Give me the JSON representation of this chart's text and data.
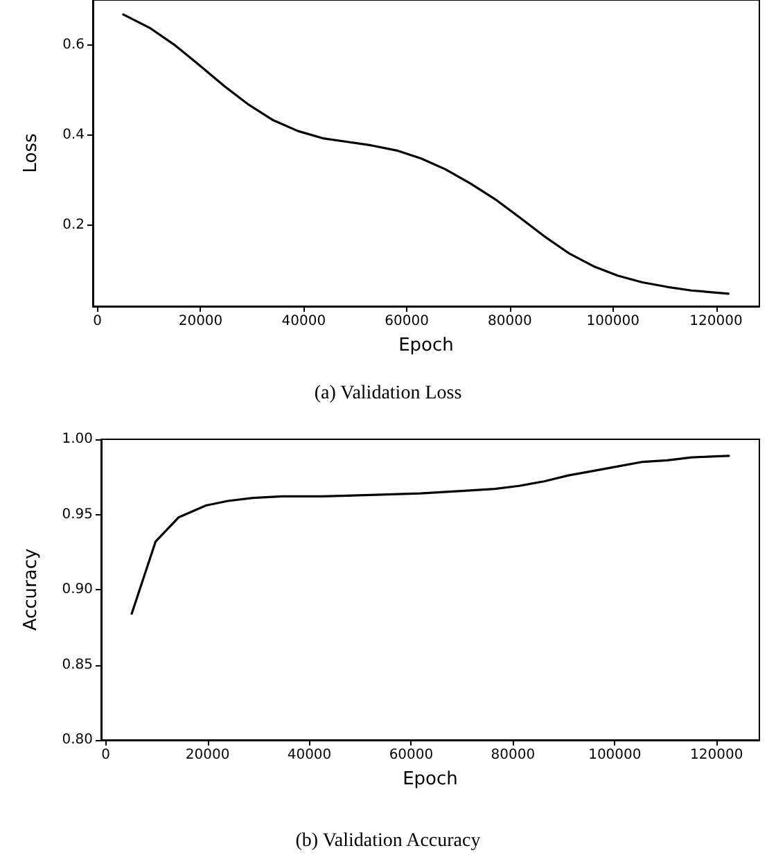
{
  "chart_data": [
    {
      "type": "line",
      "title": "(a) Validation Loss",
      "xlabel": "Epoch",
      "ylabel": "Loss",
      "x": [
        5000,
        10300,
        15100,
        19800,
        24600,
        29400,
        34100,
        38900,
        43700,
        48500,
        53200,
        58000,
        62800,
        67500,
        72300,
        77100,
        81800,
        86600,
        91400,
        96200,
        100900,
        105700,
        110500,
        115200,
        122400
      ],
      "series": [
        {
          "color": "#000000",
          "values": [
            0.668,
            0.637,
            0.599,
            0.555,
            0.509,
            0.467,
            0.433,
            0.409,
            0.393,
            0.385,
            0.377,
            0.366,
            0.348,
            0.324,
            0.293,
            0.258,
            0.218,
            0.176,
            0.138,
            0.109,
            0.088,
            0.073,
            0.063,
            0.055,
            0.048
          ]
        }
      ],
      "xlim": [
        -900,
        128400
      ],
      "xticks": [
        0,
        20000,
        40000,
        60000,
        80000,
        100000,
        120000
      ],
      "ylim": [
        0.02,
        0.7
      ],
      "yticks": [
        0.2,
        0.4,
        0.6
      ],
      "grid": false,
      "marker": "none",
      "line_style": "solid"
    },
    {
      "type": "line",
      "title": "(b) Validation Accuracy",
      "xlabel": "Epoch",
      "ylabel": "Accuracy",
      "x": [
        5100,
        9800,
        14300,
        19700,
        24000,
        28900,
        34700,
        42500,
        52100,
        61800,
        71500,
        76400,
        81200,
        86100,
        90900,
        95800,
        100600,
        105500,
        110300,
        115100,
        122400
      ],
      "series": [
        {
          "color": "#000000",
          "values": [
            0.884,
            0.932,
            0.948,
            0.956,
            0.959,
            0.961,
            0.962,
            0.962,
            0.963,
            0.964,
            0.966,
            0.967,
            0.969,
            0.972,
            0.976,
            0.979,
            0.982,
            0.985,
            0.986,
            0.988,
            0.989
          ]
        }
      ],
      "xlim": [
        -900,
        128400
      ],
      "xticks": [
        0,
        20000,
        40000,
        60000,
        80000,
        100000,
        120000
      ],
      "ylim": [
        0.8,
        1.0
      ],
      "yticks": [
        {
          "value": 0.8,
          "label": "0.80"
        },
        {
          "value": 0.85,
          "label": "0.85"
        },
        {
          "value": 0.9,
          "label": "0.90"
        },
        {
          "value": 0.95,
          "label": "0.95"
        },
        {
          "value": 1.0,
          "label": "1.00"
        }
      ],
      "grid": false,
      "marker": "none",
      "line_style": "solid"
    }
  ]
}
